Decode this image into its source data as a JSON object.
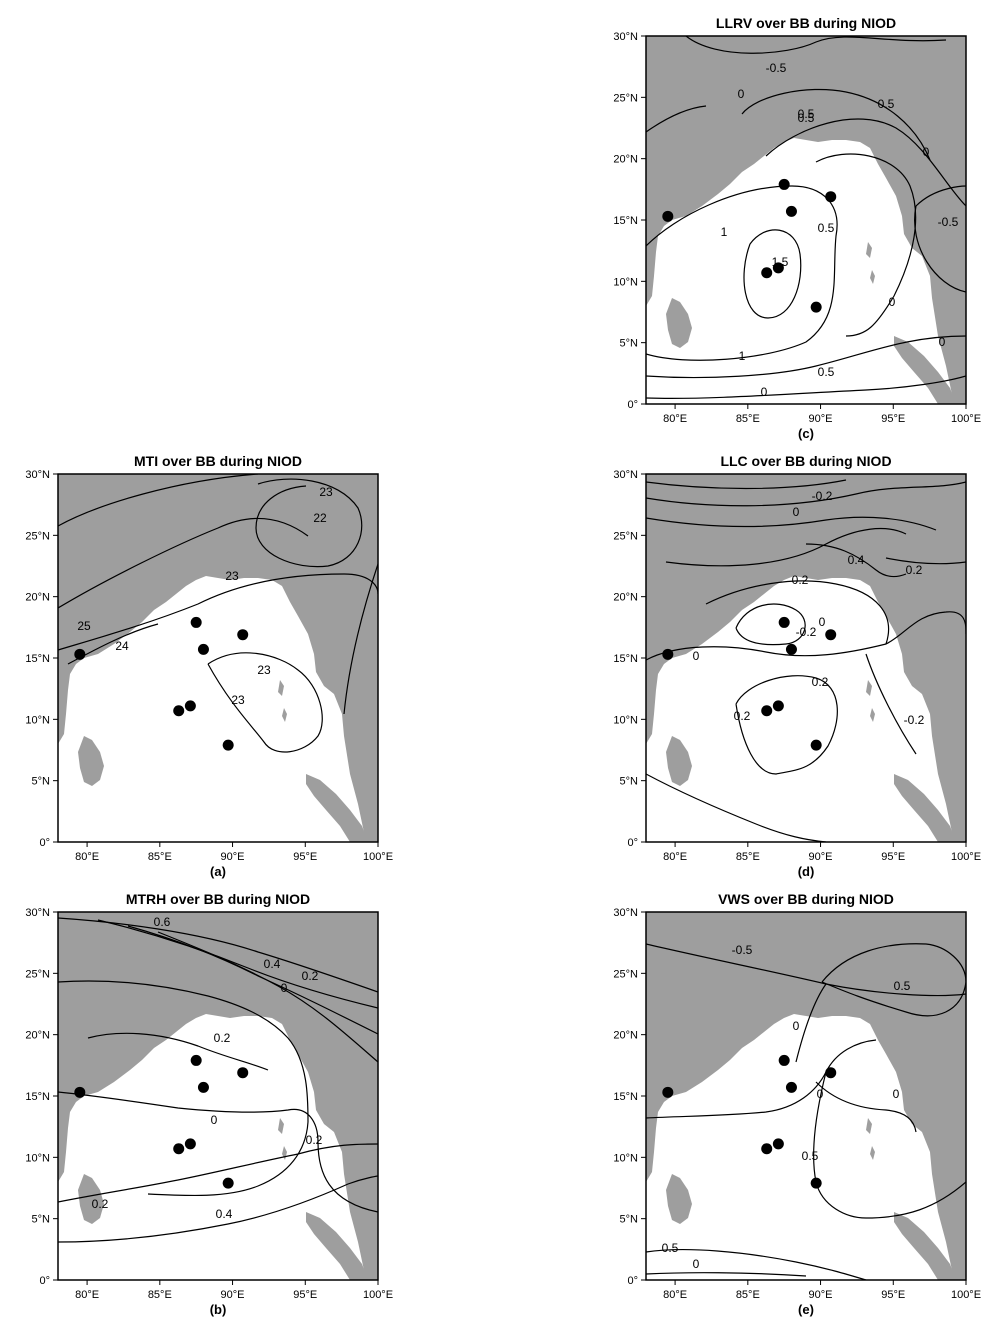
{
  "panels": [
    {
      "id": "c",
      "title": "LLRV over BB during NIOD",
      "label": "(c)",
      "contour_labels": [
        "-0.5",
        "0",
        "0.5",
        "0.5",
        "0",
        "0.5",
        "1",
        "1.5",
        "0.5",
        "0",
        "1",
        "0.5",
        "0",
        "-0.5",
        "0"
      ]
    },
    {
      "id": "a",
      "title": "MTI over BB during NIOD",
      "label": "(a)",
      "contour_labels": [
        "23",
        "22",
        "25",
        "24",
        "23",
        "23",
        "23"
      ]
    },
    {
      "id": "d",
      "title": "LLC over BB during NIOD",
      "label": "(d)",
      "contour_labels": [
        "-0.2",
        "0",
        "0.4",
        "0.2",
        "0.2",
        "0",
        "-0.2",
        "0",
        "0.2",
        "0.2",
        "-0.2"
      ]
    },
    {
      "id": "b",
      "title": "MTRH over BB during NIOD",
      "label": "(b)",
      "contour_labels": [
        "0.6",
        "0.4",
        "0.2",
        "0",
        "0.2",
        "0",
        "0.2",
        "0.2",
        "0.4"
      ]
    },
    {
      "id": "e",
      "title": "VWS over BB during NIOD",
      "label": "(e)",
      "contour_labels": [
        "-0.5",
        "0.5",
        "0",
        "0",
        "0",
        "0.5",
        "0.5",
        "0"
      ]
    }
  ],
  "axes": {
    "x_ticks": [
      "80°E",
      "85°E",
      "90°E",
      "95°E",
      "100°E"
    ],
    "y_ticks": [
      "0°",
      "5°N",
      "10°N",
      "15°N",
      "20°N",
      "25°N",
      "30°N"
    ],
    "lon_range": [
      78,
      100
    ],
    "lat_range": [
      0,
      30
    ]
  },
  "stations": [
    {
      "lon": 79.5,
      "lat": 15.3
    },
    {
      "lon": 87.5,
      "lat": 17.9
    },
    {
      "lon": 88.0,
      "lat": 15.7
    },
    {
      "lon": 90.7,
      "lat": 16.9
    },
    {
      "lon": 87.1,
      "lat": 11.1
    },
    {
      "lon": 86.3,
      "lat": 10.7
    },
    {
      "lon": 89.7,
      "lat": 7.9
    }
  ],
  "colors": {
    "land": "#9e9e9e",
    "sea": "#ffffff",
    "contour": "#000000"
  }
}
